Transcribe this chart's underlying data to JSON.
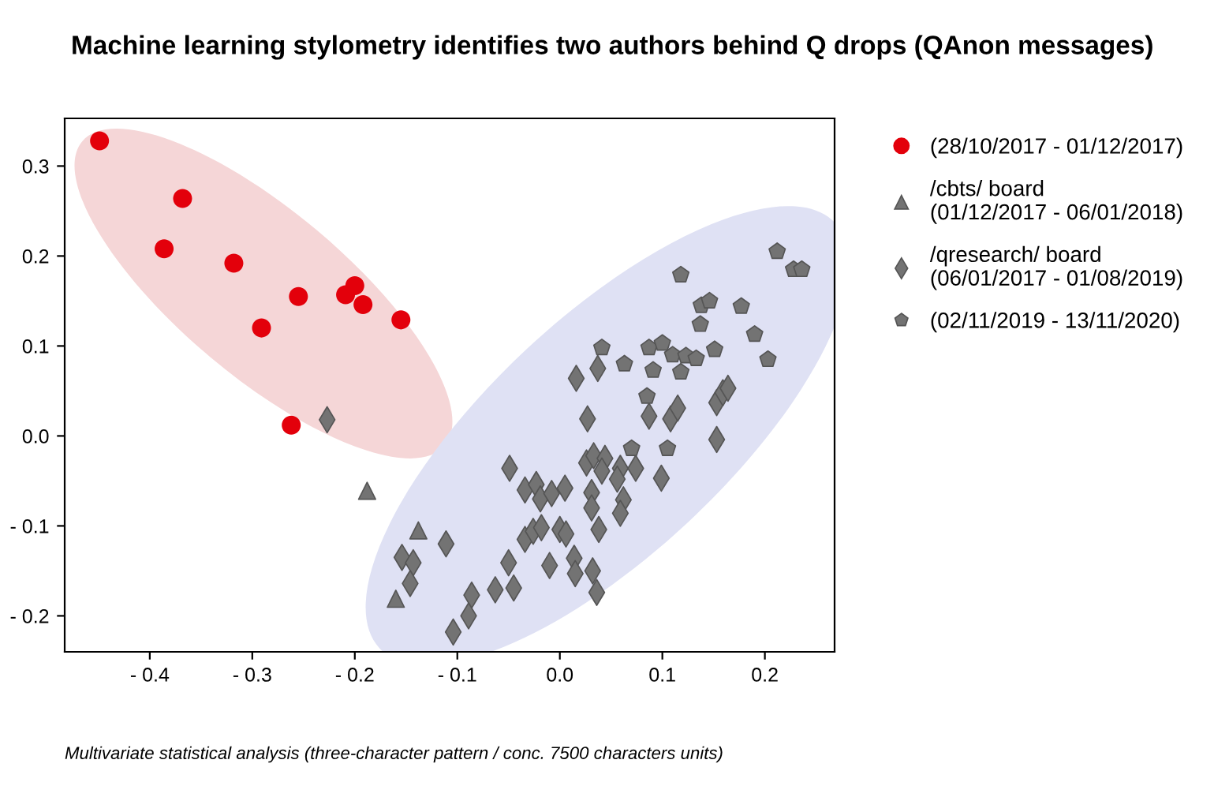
{
  "chart_data": {
    "type": "scatter",
    "title": "Machine learning stylometry identifies two authors behind Q drops (QAnon messages)",
    "annotations": [
      "Multivariate statistical analysis (three-character pattern / conc. 7500 characters units)"
    ],
    "xlim": [
      -0.483,
      0.268
    ],
    "ylim": [
      -0.24,
      0.353
    ],
    "xticks": [
      {
        "value": -0.4,
        "label": "- 0.4"
      },
      {
        "value": -0.3,
        "label": "- 0.3"
      },
      {
        "value": -0.2,
        "label": "- 0.2"
      },
      {
        "value": -0.1,
        "label": "- 0.1"
      },
      {
        "value": 0.0,
        "label": "0.0"
      },
      {
        "value": 0.1,
        "label": "0.1"
      },
      {
        "value": 0.2,
        "label": "0.2"
      }
    ],
    "yticks": [
      {
        "value": -0.2,
        "label": "- 0.2"
      },
      {
        "value": -0.1,
        "label": "- 0.1"
      },
      {
        "value": 0.0,
        "label": "0.0"
      },
      {
        "value": 0.1,
        "label": "0.1"
      },
      {
        "value": 0.2,
        "label": "0.2"
      },
      {
        "value": 0.3,
        "label": "0.3"
      }
    ],
    "grid": false,
    "legend": "right",
    "series": [
      {
        "name": "(28/10/2017 - 01/12/2017)",
        "color": "#e3000b",
        "marker": "circle",
        "x": [
          -0.449,
          -0.368,
          -0.386,
          -0.318,
          -0.255,
          -0.209,
          -0.2,
          -0.192,
          -0.155,
          -0.291,
          -0.262
        ],
        "values": [
          0.328,
          0.264,
          0.208,
          0.192,
          0.155,
          0.157,
          0.167,
          0.146,
          0.129,
          0.12,
          0.012
        ]
      },
      {
        "name": "/cbts/ board\n(01/12/2017 - 06/01/2018)",
        "color": "#737373",
        "marker": "triangle",
        "x": [
          -0.188,
          -0.138,
          -0.16
        ],
        "values": [
          -0.061,
          -0.105,
          -0.181
        ]
      },
      {
        "name": "/qresearch/ board\n(06/01/2017 - 01/08/2019)",
        "color": "#737373",
        "marker": "diamond",
        "x": [
          -0.227,
          -0.049,
          -0.034,
          -0.023,
          -0.019,
          -0.008,
          0.005,
          -0.034,
          -0.026,
          -0.018,
          0.0,
          0.006,
          -0.111,
          -0.154,
          -0.143,
          -0.146,
          -0.05,
          -0.01,
          0.014,
          0.015,
          -0.086,
          -0.063,
          -0.045,
          -0.089,
          -0.104,
          0.016,
          0.037,
          0.027,
          0.087,
          0.108,
          0.115,
          0.153,
          0.159,
          0.164,
          0.153,
          0.026,
          0.033,
          0.044,
          0.041,
          0.059,
          0.074,
          0.056,
          0.099,
          0.031,
          0.031,
          0.062,
          0.059,
          0.038,
          0.032,
          0.036
        ],
        "values": [
          0.018,
          -0.036,
          -0.06,
          -0.054,
          -0.07,
          -0.064,
          -0.058,
          -0.115,
          -0.106,
          -0.102,
          -0.104,
          -0.109,
          -0.12,
          -0.135,
          -0.141,
          -0.164,
          -0.141,
          -0.144,
          -0.136,
          -0.153,
          -0.177,
          -0.171,
          -0.169,
          -0.2,
          -0.218,
          0.064,
          0.075,
          0.019,
          0.022,
          0.019,
          0.031,
          0.037,
          0.048,
          0.053,
          -0.004,
          -0.03,
          -0.022,
          -0.025,
          -0.039,
          -0.036,
          -0.036,
          -0.048,
          -0.047,
          -0.063,
          -0.08,
          -0.071,
          -0.086,
          -0.104,
          -0.15,
          -0.174
        ]
      },
      {
        "name": "(02/11/2019 - 13/11/2020)",
        "color": "#737373",
        "x": [
          0.118,
          0.212,
          0.228,
          0.236,
          0.138,
          0.146,
          0.137,
          0.177,
          0.19,
          0.203,
          0.041,
          0.063,
          0.087,
          0.1,
          0.11,
          0.123,
          0.133,
          0.151,
          0.091,
          0.118,
          0.085,
          0.07,
          0.105
        ],
        "values": [
          0.179,
          0.205,
          0.185,
          0.185,
          0.145,
          0.15,
          0.124,
          0.144,
          0.113,
          0.085,
          0.098,
          0.08,
          0.098,
          0.103,
          0.09,
          0.089,
          0.086,
          0.096,
          0.073,
          0.071,
          0.044,
          -0.014,
          -0.014
        ]
      }
    ]
  }
}
